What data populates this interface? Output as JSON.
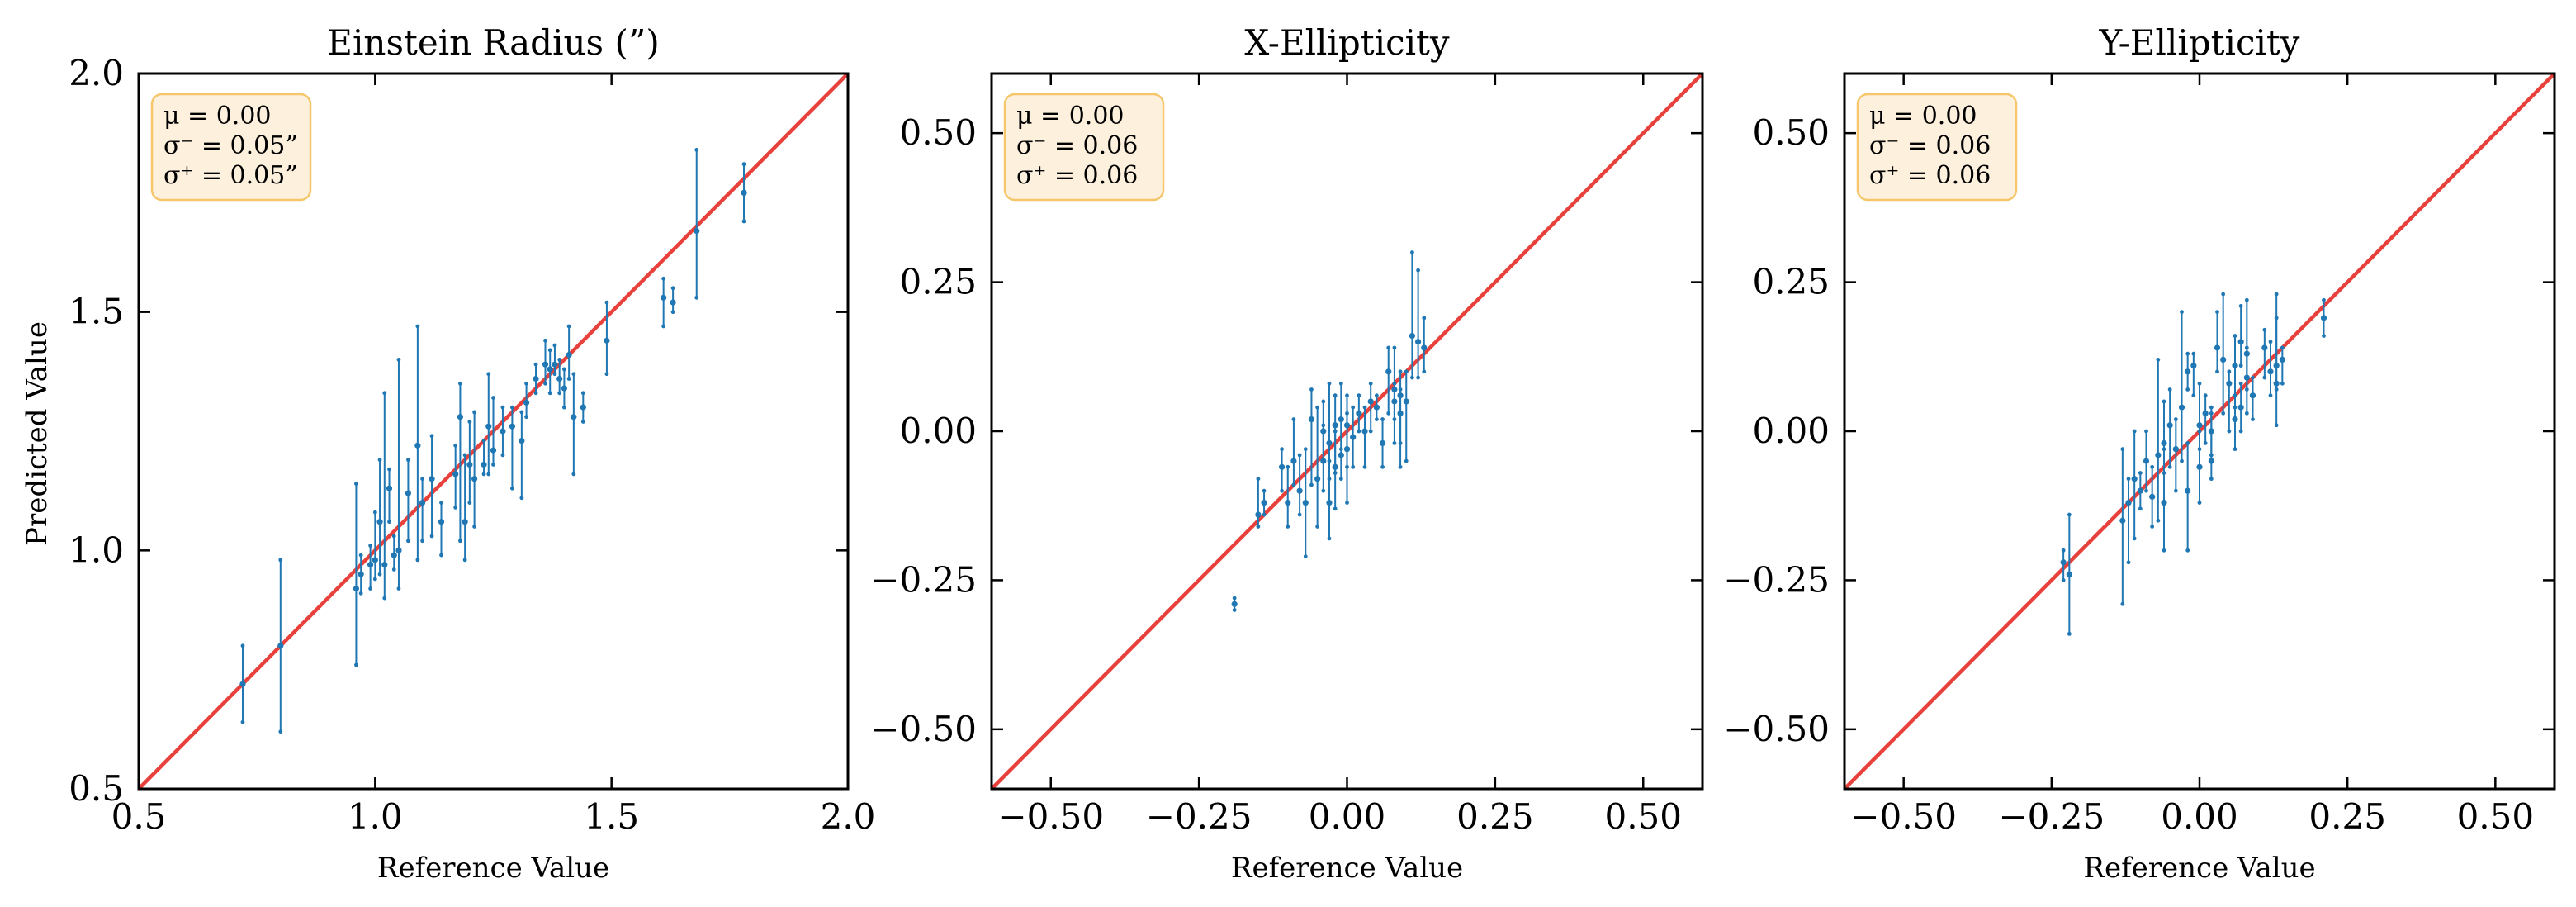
{
  "figure": {
    "ylabel": "Predicted Value",
    "xlabel": "Reference Value"
  },
  "colors": {
    "points": "#1f77b4",
    "reference_line": "#e8413c",
    "box_fill": "#fdf0dd",
    "box_edge": "#f5c66a"
  },
  "chart_data": [
    {
      "type": "scatter",
      "title": "Einstein Radius (”)",
      "xlabel": "Reference Value",
      "ylabel": "Predicted Value",
      "xlim": [
        0.5,
        2.0
      ],
      "ylim": [
        0.5,
        2.0
      ],
      "xticks": [
        0.5,
        1.0,
        1.5,
        2.0
      ],
      "yticks": [
        0.5,
        1.0,
        1.5,
        2.0
      ],
      "xtick_labels": [
        "0.5",
        "1.0",
        "1.5",
        "2.0"
      ],
      "ytick_labels": [
        "0.5",
        "1.0",
        "1.5",
        "2.0"
      ],
      "reference_line": "y = x",
      "stats": [
        "μ = 0.00",
        "σ⁻ = 0.05”",
        "σ⁺ = 0.05”"
      ],
      "points": [
        {
          "x": 0.72,
          "y": 0.72,
          "lo": 0.64,
          "hi": 0.8
        },
        {
          "x": 0.8,
          "y": 0.8,
          "lo": 0.62,
          "hi": 0.98
        },
        {
          "x": 0.96,
          "y": 0.92,
          "lo": 0.76,
          "hi": 1.14
        },
        {
          "x": 0.97,
          "y": 0.95,
          "lo": 0.91,
          "hi": 0.99
        },
        {
          "x": 0.99,
          "y": 0.97,
          "lo": 0.92,
          "hi": 1.01
        },
        {
          "x": 1.0,
          "y": 0.98,
          "lo": 0.94,
          "hi": 1.08
        },
        {
          "x": 1.01,
          "y": 1.06,
          "lo": 0.95,
          "hi": 1.19
        },
        {
          "x": 1.02,
          "y": 0.97,
          "lo": 0.9,
          "hi": 1.33
        },
        {
          "x": 1.03,
          "y": 1.13,
          "lo": 1.06,
          "hi": 1.17
        },
        {
          "x": 1.04,
          "y": 0.99,
          "lo": 0.96,
          "hi": 1.03
        },
        {
          "x": 1.05,
          "y": 1.0,
          "lo": 0.92,
          "hi": 1.4
        },
        {
          "x": 1.07,
          "y": 1.12,
          "lo": 1.02,
          "hi": 1.19
        },
        {
          "x": 1.09,
          "y": 1.22,
          "lo": 0.98,
          "hi": 1.47
        },
        {
          "x": 1.1,
          "y": 1.1,
          "lo": 1.02,
          "hi": 1.15
        },
        {
          "x": 1.12,
          "y": 1.15,
          "lo": 1.03,
          "hi": 1.24
        },
        {
          "x": 1.14,
          "y": 1.06,
          "lo": 0.99,
          "hi": 1.1
        },
        {
          "x": 1.17,
          "y": 1.16,
          "lo": 1.09,
          "hi": 1.22
        },
        {
          "x": 1.18,
          "y": 1.28,
          "lo": 1.02,
          "hi": 1.35
        },
        {
          "x": 1.19,
          "y": 1.06,
          "lo": 0.98,
          "hi": 1.2
        },
        {
          "x": 1.2,
          "y": 1.18,
          "lo": 1.1,
          "hi": 1.27
        },
        {
          "x": 1.21,
          "y": 1.15,
          "lo": 1.05,
          "hi": 1.29
        },
        {
          "x": 1.23,
          "y": 1.18,
          "lo": 1.16,
          "hi": 1.23
        },
        {
          "x": 1.24,
          "y": 1.26,
          "lo": 1.16,
          "hi": 1.37
        },
        {
          "x": 1.25,
          "y": 1.21,
          "lo": 1.18,
          "hi": 1.32
        },
        {
          "x": 1.27,
          "y": 1.25,
          "lo": 1.2,
          "hi": 1.3
        },
        {
          "x": 1.29,
          "y": 1.26,
          "lo": 1.13,
          "hi": 1.3
        },
        {
          "x": 1.31,
          "y": 1.23,
          "lo": 1.11,
          "hi": 1.29
        },
        {
          "x": 1.32,
          "y": 1.31,
          "lo": 1.28,
          "hi": 1.35
        },
        {
          "x": 1.34,
          "y": 1.36,
          "lo": 1.33,
          "hi": 1.39
        },
        {
          "x": 1.36,
          "y": 1.39,
          "lo": 1.35,
          "hi": 1.44
        },
        {
          "x": 1.37,
          "y": 1.38,
          "lo": 1.33,
          "hi": 1.42
        },
        {
          "x": 1.38,
          "y": 1.39,
          "lo": 1.37,
          "hi": 1.43
        },
        {
          "x": 1.39,
          "y": 1.36,
          "lo": 1.33,
          "hi": 1.4
        },
        {
          "x": 1.4,
          "y": 1.34,
          "lo": 1.3,
          "hi": 1.38
        },
        {
          "x": 1.41,
          "y": 1.41,
          "lo": 1.36,
          "hi": 1.47
        },
        {
          "x": 1.42,
          "y": 1.28,
          "lo": 1.16,
          "hi": 1.37
        },
        {
          "x": 1.44,
          "y": 1.3,
          "lo": 1.27,
          "hi": 1.33
        },
        {
          "x": 1.49,
          "y": 1.44,
          "lo": 1.37,
          "hi": 1.52
        },
        {
          "x": 1.61,
          "y": 1.53,
          "lo": 1.47,
          "hi": 1.57
        },
        {
          "x": 1.63,
          "y": 1.52,
          "lo": 1.5,
          "hi": 1.55
        },
        {
          "x": 1.68,
          "y": 1.67,
          "lo": 1.53,
          "hi": 1.84
        },
        {
          "x": 1.78,
          "y": 1.75,
          "lo": 1.69,
          "hi": 1.81
        }
      ]
    },
    {
      "type": "scatter",
      "title": "X-Ellipticity",
      "xlabel": "Reference Value",
      "ylabel": "",
      "xlim": [
        -0.6,
        0.6
      ],
      "ylim": [
        -0.6,
        0.6
      ],
      "xticks": [
        -0.5,
        -0.25,
        0.0,
        0.25,
        0.5
      ],
      "yticks": [
        -0.5,
        -0.25,
        0.0,
        0.25,
        0.5
      ],
      "xtick_labels": [
        "−0.50",
        "−0.25",
        "0.00",
        "0.25",
        "0.50"
      ],
      "ytick_labels": [
        "−0.50",
        "−0.25",
        "0.00",
        "0.25",
        "0.50"
      ],
      "reference_line": "y = x",
      "stats": [
        "μ = 0.00",
        "σ⁻ = 0.06",
        "σ⁺ = 0.06"
      ],
      "points": [
        {
          "x": -0.19,
          "y": -0.29,
          "lo": -0.3,
          "hi": -0.28
        },
        {
          "x": -0.15,
          "y": -0.14,
          "lo": -0.16,
          "hi": -0.08
        },
        {
          "x": -0.14,
          "y": -0.12,
          "lo": -0.14,
          "hi": -0.1
        },
        {
          "x": -0.11,
          "y": -0.06,
          "lo": -0.1,
          "hi": -0.03
        },
        {
          "x": -0.1,
          "y": -0.12,
          "lo": -0.16,
          "hi": -0.06
        },
        {
          "x": -0.09,
          "y": -0.05,
          "lo": -0.09,
          "hi": 0.02
        },
        {
          "x": -0.08,
          "y": -0.1,
          "lo": -0.14,
          "hi": -0.04
        },
        {
          "x": -0.07,
          "y": -0.12,
          "lo": -0.21,
          "hi": -0.03
        },
        {
          "x": -0.06,
          "y": 0.02,
          "lo": -0.09,
          "hi": 0.07
        },
        {
          "x": -0.05,
          "y": -0.08,
          "lo": -0.16,
          "hi": 0.04
        },
        {
          "x": -0.04,
          "y": -0.05,
          "lo": -0.1,
          "hi": 0.01
        },
        {
          "x": -0.04,
          "y": 0.0,
          "lo": -0.05,
          "hi": 0.05
        },
        {
          "x": -0.03,
          "y": -0.12,
          "lo": -0.18,
          "hi": -0.05
        },
        {
          "x": -0.03,
          "y": -0.02,
          "lo": -0.08,
          "hi": 0.08
        },
        {
          "x": -0.02,
          "y": 0.01,
          "lo": -0.07,
          "hi": 0.06
        },
        {
          "x": -0.02,
          "y": -0.06,
          "lo": -0.13,
          "hi": 0.0
        },
        {
          "x": -0.01,
          "y": 0.02,
          "lo": -0.03,
          "hi": 0.08
        },
        {
          "x": -0.01,
          "y": -0.04,
          "lo": -0.08,
          "hi": 0.02
        },
        {
          "x": 0.0,
          "y": 0.01,
          "lo": -0.06,
          "hi": 0.06
        },
        {
          "x": 0.0,
          "y": -0.03,
          "lo": -0.12,
          "hi": 0.03
        },
        {
          "x": 0.01,
          "y": -0.01,
          "lo": -0.06,
          "hi": 0.04
        },
        {
          "x": 0.02,
          "y": 0.03,
          "lo": 0.0,
          "hi": 0.06
        },
        {
          "x": 0.03,
          "y": 0.0,
          "lo": -0.06,
          "hi": 0.04
        },
        {
          "x": 0.04,
          "y": 0.05,
          "lo": 0.0,
          "hi": 0.08
        },
        {
          "x": 0.05,
          "y": 0.04,
          "lo": 0.02,
          "hi": 0.06
        },
        {
          "x": 0.06,
          "y": -0.02,
          "lo": -0.06,
          "hi": 0.02
        },
        {
          "x": 0.07,
          "y": 0.1,
          "lo": 0.03,
          "hi": 0.14
        },
        {
          "x": 0.08,
          "y": 0.05,
          "lo": -0.02,
          "hi": 0.08
        },
        {
          "x": 0.08,
          "y": 0.07,
          "lo": 0.02,
          "hi": 0.14
        },
        {
          "x": 0.09,
          "y": 0.06,
          "lo": -0.06,
          "hi": 0.1
        },
        {
          "x": 0.09,
          "y": 0.03,
          "lo": -0.02,
          "hi": 0.07
        },
        {
          "x": 0.1,
          "y": 0.05,
          "lo": -0.05,
          "hi": 0.1
        },
        {
          "x": 0.11,
          "y": 0.16,
          "lo": 0.09,
          "hi": 0.3
        },
        {
          "x": 0.12,
          "y": 0.15,
          "lo": 0.09,
          "hi": 0.27
        },
        {
          "x": 0.13,
          "y": 0.14,
          "lo": 0.1,
          "hi": 0.19
        }
      ]
    },
    {
      "type": "scatter",
      "title": "Y-Ellipticity",
      "xlabel": "Reference Value",
      "ylabel": "",
      "xlim": [
        -0.6,
        0.6
      ],
      "ylim": [
        -0.6,
        0.6
      ],
      "xticks": [
        -0.5,
        -0.25,
        0.0,
        0.25,
        0.5
      ],
      "yticks": [
        -0.5,
        -0.25,
        0.0,
        0.25,
        0.5
      ],
      "xtick_labels": [
        "−0.50",
        "−0.25",
        "0.00",
        "0.25",
        "0.50"
      ],
      "ytick_labels": [
        "−0.50",
        "−0.25",
        "0.00",
        "0.25",
        "0.50"
      ],
      "reference_line": "y = x",
      "stats": [
        "μ = 0.00",
        "σ⁻ = 0.06",
        "σ⁺ = 0.06"
      ],
      "points": [
        {
          "x": -0.23,
          "y": -0.22,
          "lo": -0.25,
          "hi": -0.2
        },
        {
          "x": -0.22,
          "y": -0.24,
          "lo": -0.34,
          "hi": -0.14
        },
        {
          "x": -0.13,
          "y": -0.15,
          "lo": -0.29,
          "hi": -0.03
        },
        {
          "x": -0.12,
          "y": -0.12,
          "lo": -0.22,
          "hi": -0.08
        },
        {
          "x": -0.11,
          "y": -0.08,
          "lo": -0.18,
          "hi": 0.0
        },
        {
          "x": -0.1,
          "y": -0.1,
          "lo": -0.13,
          "hi": -0.07
        },
        {
          "x": -0.09,
          "y": -0.05,
          "lo": -0.1,
          "hi": 0.0
        },
        {
          "x": -0.08,
          "y": -0.11,
          "lo": -0.16,
          "hi": -0.06
        },
        {
          "x": -0.07,
          "y": -0.04,
          "lo": -0.15,
          "hi": 0.12
        },
        {
          "x": -0.06,
          "y": -0.02,
          "lo": -0.07,
          "hi": 0.05
        },
        {
          "x": -0.06,
          "y": -0.12,
          "lo": -0.2,
          "hi": -0.03
        },
        {
          "x": -0.05,
          "y": 0.01,
          "lo": -0.06,
          "hi": 0.07
        },
        {
          "x": -0.04,
          "y": -0.03,
          "lo": -0.1,
          "hi": 0.02
        },
        {
          "x": -0.03,
          "y": 0.04,
          "lo": -0.05,
          "hi": 0.2
        },
        {
          "x": -0.02,
          "y": -0.1,
          "lo": -0.2,
          "hi": -0.02
        },
        {
          "x": -0.02,
          "y": 0.1,
          "lo": 0.07,
          "hi": 0.13
        },
        {
          "x": -0.01,
          "y": 0.11,
          "lo": 0.06,
          "hi": 0.13
        },
        {
          "x": 0.0,
          "y": -0.06,
          "lo": -0.12,
          "hi": 0.0
        },
        {
          "x": 0.0,
          "y": 0.01,
          "lo": -0.03,
          "hi": 0.08
        },
        {
          "x": 0.01,
          "y": 0.03,
          "lo": -0.02,
          "hi": 0.06
        },
        {
          "x": 0.02,
          "y": -0.05,
          "lo": -0.08,
          "hi": 0.03
        },
        {
          "x": 0.02,
          "y": 0.0,
          "lo": -0.04,
          "hi": 0.04
        },
        {
          "x": 0.03,
          "y": 0.14,
          "lo": 0.1,
          "hi": 0.2
        },
        {
          "x": 0.04,
          "y": 0.12,
          "lo": 0.03,
          "hi": 0.23
        },
        {
          "x": 0.05,
          "y": 0.08,
          "lo": 0.0,
          "hi": 0.1
        },
        {
          "x": 0.06,
          "y": 0.11,
          "lo": 0.04,
          "hi": 0.16
        },
        {
          "x": 0.06,
          "y": 0.02,
          "lo": -0.03,
          "hi": 0.06
        },
        {
          "x": 0.07,
          "y": 0.15,
          "lo": 0.11,
          "hi": 0.21
        },
        {
          "x": 0.07,
          "y": 0.04,
          "lo": 0.0,
          "hi": 0.08
        },
        {
          "x": 0.08,
          "y": 0.09,
          "lo": 0.03,
          "hi": 0.14
        },
        {
          "x": 0.08,
          "y": 0.13,
          "lo": 0.07,
          "hi": 0.22
        },
        {
          "x": 0.09,
          "y": 0.06,
          "lo": 0.02,
          "hi": 0.09
        },
        {
          "x": 0.11,
          "y": 0.14,
          "lo": 0.09,
          "hi": 0.17
        },
        {
          "x": 0.12,
          "y": 0.1,
          "lo": 0.06,
          "hi": 0.15
        },
        {
          "x": 0.13,
          "y": 0.08,
          "lo": 0.01,
          "hi": 0.23
        },
        {
          "x": 0.13,
          "y": 0.11,
          "lo": 0.07,
          "hi": 0.19
        },
        {
          "x": 0.14,
          "y": 0.12,
          "lo": 0.08,
          "hi": 0.14
        },
        {
          "x": 0.21,
          "y": 0.19,
          "lo": 0.16,
          "hi": 0.22
        }
      ]
    }
  ]
}
